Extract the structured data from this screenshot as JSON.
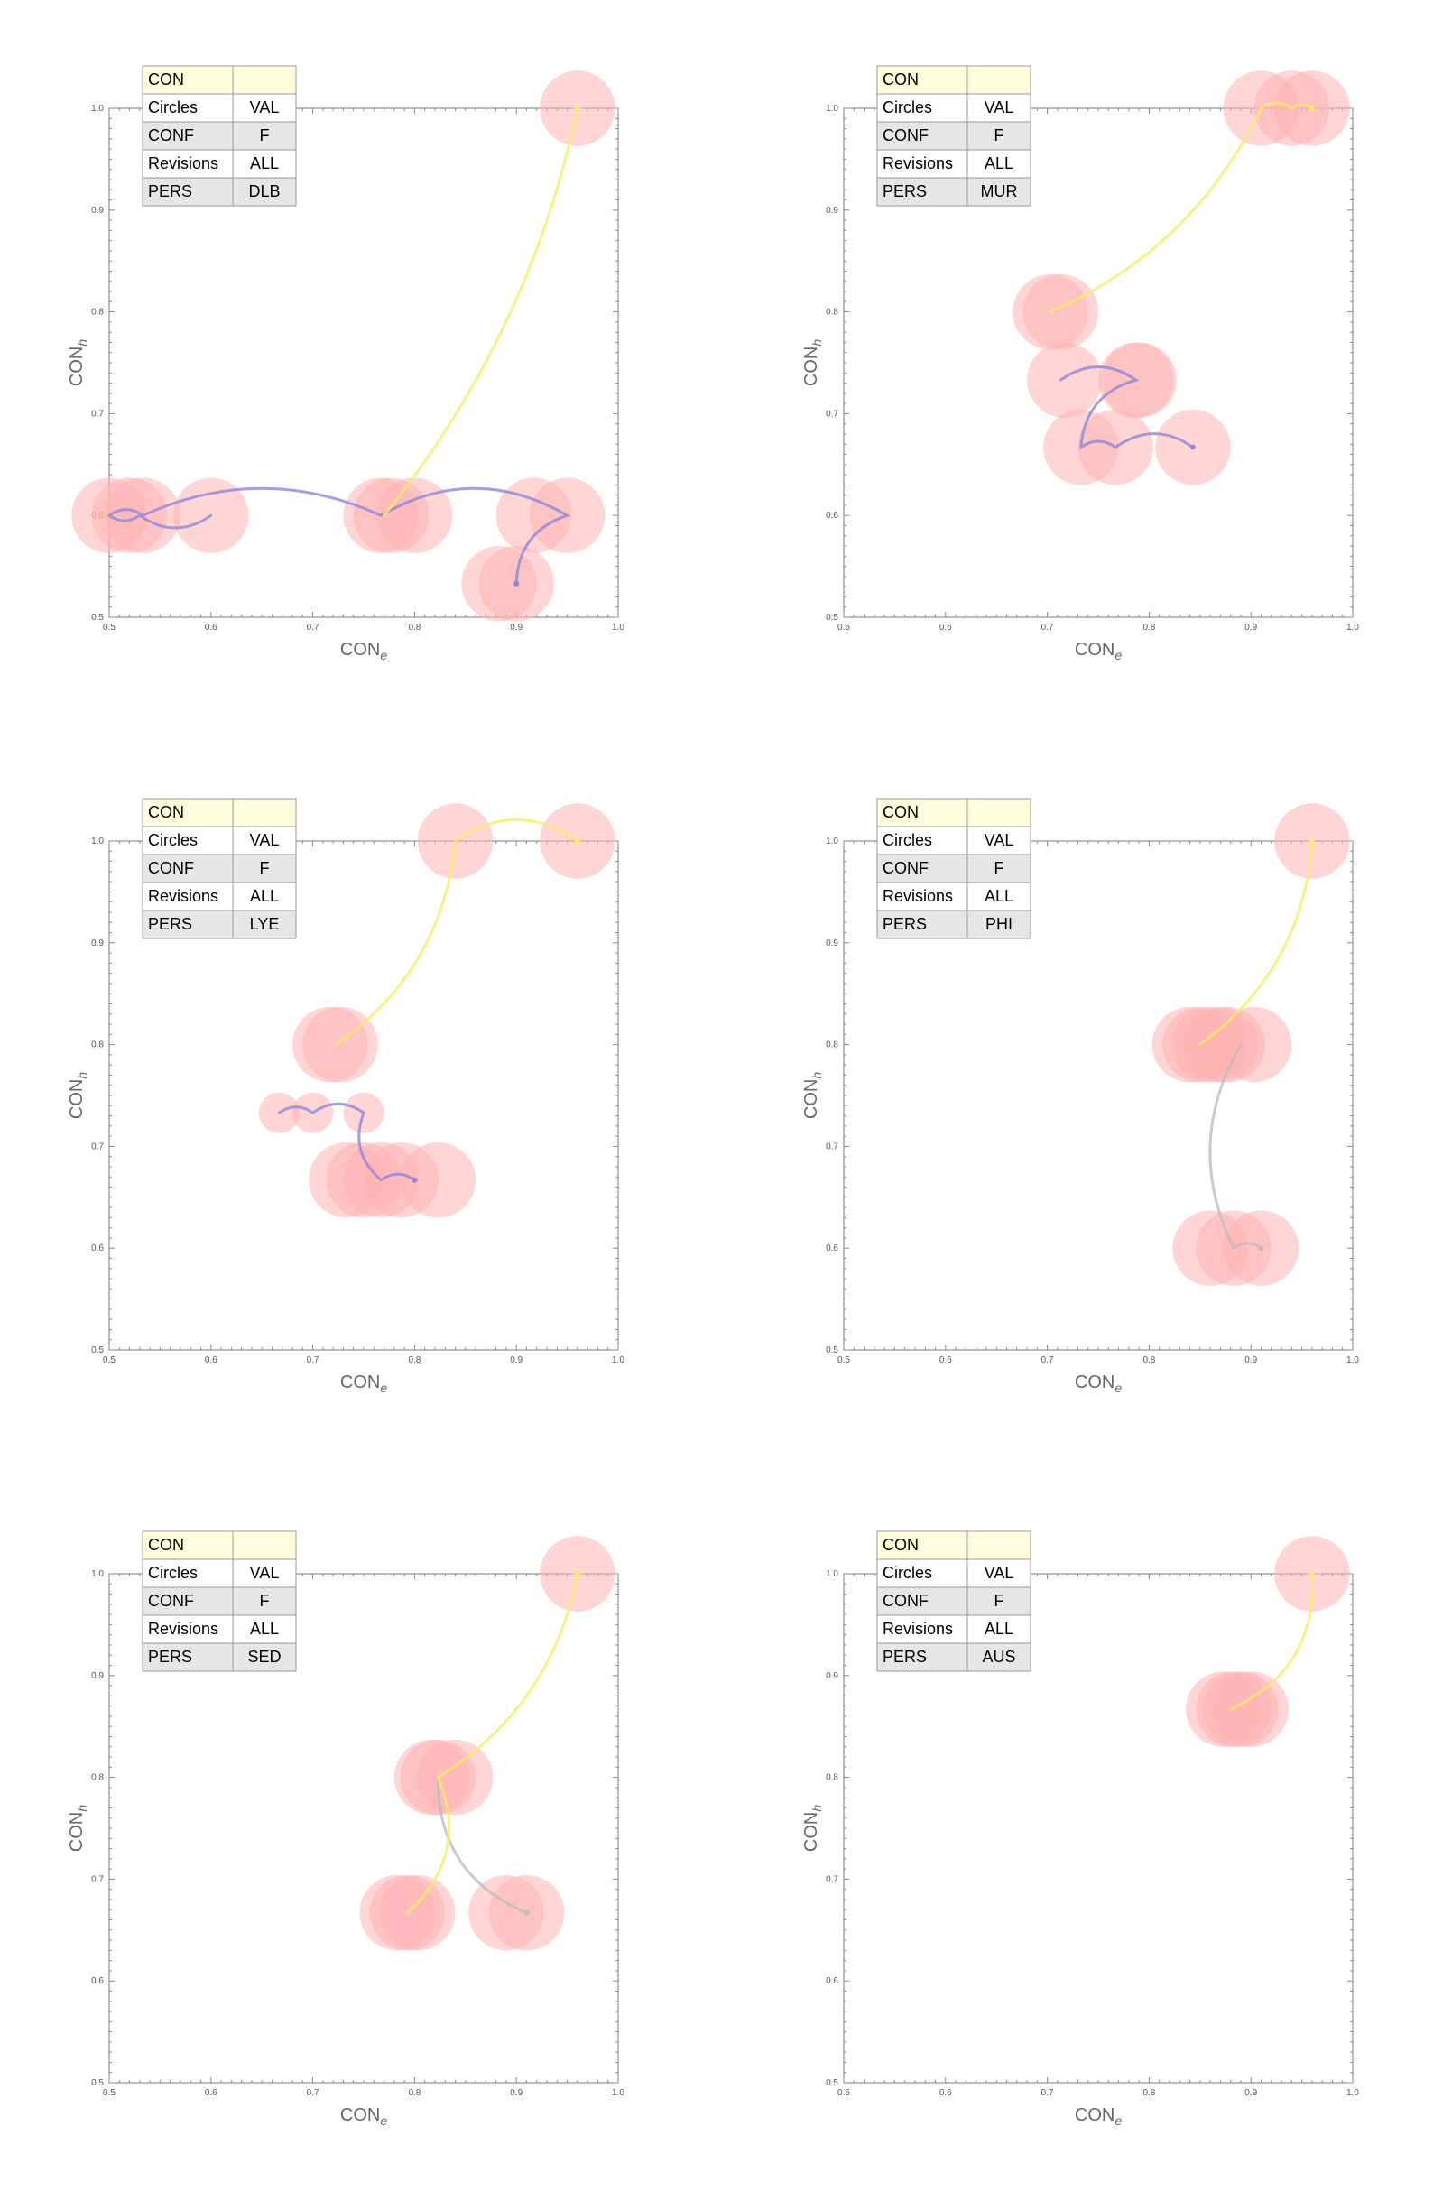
{
  "chart_data": [
    {
      "type": "scatter",
      "xlabel": "CON",
      "xlabel_sub": "e",
      "ylabel": "CON",
      "ylabel_sub": "h",
      "xlim": [
        0.5,
        1.0
      ],
      "ylim": [
        0.5,
        1.0
      ],
      "xticks": [
        "0.5",
        "0.6",
        "0.7",
        "0.8",
        "0.9",
        "1.0"
      ],
      "yticks": [
        "0.5",
        "0.6",
        "0.7",
        "0.8",
        "0.9",
        "1.0"
      ],
      "legend": [
        [
          "CON",
          ""
        ],
        [
          "Circles",
          "VAL"
        ],
        [
          "CONF",
          "F"
        ],
        [
          "Revisions",
          "ALL"
        ],
        [
          "PERS",
          "DLB"
        ]
      ],
      "points": [
        {
          "x": 0.5,
          "y": 0.6,
          "r": 0.037
        },
        {
          "x": 0.52,
          "y": 0.6,
          "r": 0.037
        },
        {
          "x": 0.533,
          "y": 0.6,
          "r": 0.037
        },
        {
          "x": 0.6,
          "y": 0.6,
          "r": 0.037
        },
        {
          "x": 0.767,
          "y": 0.6,
          "r": 0.037
        },
        {
          "x": 0.777,
          "y": 0.6,
          "r": 0.037
        },
        {
          "x": 0.8,
          "y": 0.6,
          "r": 0.037
        },
        {
          "x": 0.917,
          "y": 0.6,
          "r": 0.037
        },
        {
          "x": 0.95,
          "y": 0.6,
          "r": 0.037
        },
        {
          "x": 0.883,
          "y": 0.533,
          "r": 0.037
        },
        {
          "x": 0.9,
          "y": 0.533,
          "r": 0.037
        },
        {
          "x": 0.96,
          "y": 1.0,
          "r": 0.037
        }
      ],
      "paths": [
        {
          "color": "#8c87dc",
          "points": [
            [
              0.6,
              0.6
            ],
            [
              0.53,
              0.6
            ],
            [
              0.5,
              0.6
            ],
            [
              0.533,
              0.6
            ],
            [
              0.767,
              0.6
            ],
            [
              0.95,
              0.6
            ],
            [
              0.9,
              0.533
            ]
          ]
        },
        {
          "color": "#f3ef6a",
          "points": [
            [
              0.77,
              0.6
            ],
            [
              0.96,
              1.0
            ]
          ]
        }
      ]
    },
    {
      "type": "scatter",
      "xlabel": "CON",
      "xlabel_sub": "e",
      "ylabel": "CON",
      "ylabel_sub": "h",
      "xlim": [
        0.5,
        1.0
      ],
      "ylim": [
        0.5,
        1.0
      ],
      "xticks": [
        "0.5",
        "0.6",
        "0.7",
        "0.8",
        "0.9",
        "1.0"
      ],
      "yticks": [
        "0.5",
        "0.6",
        "0.7",
        "0.8",
        "0.9",
        "1.0"
      ],
      "legend": [
        [
          "CON",
          ""
        ],
        [
          "Circles",
          "VAL"
        ],
        [
          "CONF",
          "F"
        ],
        [
          "Revisions",
          "ALL"
        ],
        [
          "PERS",
          "MUR"
        ]
      ],
      "points": [
        {
          "x": 0.703,
          "y": 0.8,
          "r": 0.037
        },
        {
          "x": 0.713,
          "y": 0.8,
          "r": 0.037
        },
        {
          "x": 0.717,
          "y": 0.733,
          "r": 0.037
        },
        {
          "x": 0.787,
          "y": 0.733,
          "r": 0.037
        },
        {
          "x": 0.79,
          "y": 0.733,
          "r": 0.037
        },
        {
          "x": 0.733,
          "y": 0.667,
          "r": 0.037
        },
        {
          "x": 0.767,
          "y": 0.667,
          "r": 0.037
        },
        {
          "x": 0.843,
          "y": 0.667,
          "r": 0.037
        },
        {
          "x": 0.91,
          "y": 1.0,
          "r": 0.037
        },
        {
          "x": 0.94,
          "y": 1.0,
          "r": 0.037
        },
        {
          "x": 0.96,
          "y": 1.0,
          "r": 0.037
        }
      ],
      "paths": [
        {
          "color": "#8c87dc",
          "points": [
            [
              0.713,
              0.733
            ],
            [
              0.787,
              0.733
            ],
            [
              0.733,
              0.667
            ],
            [
              0.767,
              0.667
            ],
            [
              0.843,
              0.667
            ]
          ]
        },
        {
          "color": "#f3ef6a",
          "points": [
            [
              0.703,
              0.8
            ],
            [
              0.91,
              1.0
            ],
            [
              0.94,
              1.0
            ],
            [
              0.96,
              1.0
            ]
          ]
        }
      ]
    },
    {
      "type": "scatter",
      "xlabel": "CON",
      "xlabel_sub": "e",
      "ylabel": "CON",
      "ylabel_sub": "h",
      "xlim": [
        0.5,
        1.0
      ],
      "ylim": [
        0.5,
        1.0
      ],
      "xticks": [
        "0.5",
        "0.6",
        "0.7",
        "0.8",
        "0.9",
        "1.0"
      ],
      "yticks": [
        "0.5",
        "0.6",
        "0.7",
        "0.8",
        "0.9",
        "1.0"
      ],
      "legend": [
        [
          "CON",
          ""
        ],
        [
          "Circles",
          "VAL"
        ],
        [
          "CONF",
          "F"
        ],
        [
          "Revisions",
          "ALL"
        ],
        [
          "PERS",
          "LYE"
        ]
      ],
      "points": [
        {
          "x": 0.667,
          "y": 0.733,
          "r": 0.02
        },
        {
          "x": 0.7,
          "y": 0.733,
          "r": 0.02
        },
        {
          "x": 0.75,
          "y": 0.733,
          "r": 0.02
        },
        {
          "x": 0.717,
          "y": 0.8,
          "r": 0.037
        },
        {
          "x": 0.727,
          "y": 0.8,
          "r": 0.037
        },
        {
          "x": 0.733,
          "y": 0.667,
          "r": 0.037
        },
        {
          "x": 0.75,
          "y": 0.667,
          "r": 0.037
        },
        {
          "x": 0.767,
          "y": 0.667,
          "r": 0.037
        },
        {
          "x": 0.787,
          "y": 0.667,
          "r": 0.037
        },
        {
          "x": 0.823,
          "y": 0.667,
          "r": 0.037
        },
        {
          "x": 0.84,
          "y": 1.0,
          "r": 0.037
        },
        {
          "x": 0.96,
          "y": 1.0,
          "r": 0.037
        }
      ],
      "paths": [
        {
          "color": "#8c87dc",
          "points": [
            [
              0.667,
              0.733
            ],
            [
              0.7,
              0.733
            ],
            [
              0.75,
              0.733
            ],
            [
              0.767,
              0.667
            ],
            [
              0.8,
              0.667
            ]
          ]
        },
        {
          "color": "#f3ef6a",
          "points": [
            [
              0.723,
              0.8
            ],
            [
              0.84,
              1.0
            ],
            [
              0.96,
              1.0
            ]
          ]
        }
      ]
    },
    {
      "type": "scatter",
      "xlabel": "CON",
      "xlabel_sub": "e",
      "ylabel": "CON",
      "ylabel_sub": "h",
      "xlim": [
        0.5,
        1.0
      ],
      "ylim": [
        0.5,
        1.0
      ],
      "xticks": [
        "0.5",
        "0.6",
        "0.7",
        "0.8",
        "0.9",
        "1.0"
      ],
      "yticks": [
        "0.5",
        "0.6",
        "0.7",
        "0.8",
        "0.9",
        "1.0"
      ],
      "legend": [
        [
          "CON",
          ""
        ],
        [
          "Circles",
          "VAL"
        ],
        [
          "CONF",
          "F"
        ],
        [
          "Revisions",
          "ALL"
        ],
        [
          "PERS",
          "PHI"
        ]
      ],
      "points": [
        {
          "x": 0.84,
          "y": 0.8,
          "r": 0.037
        },
        {
          "x": 0.85,
          "y": 0.8,
          "r": 0.037
        },
        {
          "x": 0.86,
          "y": 0.8,
          "r": 0.037
        },
        {
          "x": 0.87,
          "y": 0.8,
          "r": 0.037
        },
        {
          "x": 0.877,
          "y": 0.8,
          "r": 0.037
        },
        {
          "x": 0.903,
          "y": 0.8,
          "r": 0.037
        },
        {
          "x": 0.86,
          "y": 0.6,
          "r": 0.037
        },
        {
          "x": 0.883,
          "y": 0.6,
          "r": 0.037
        },
        {
          "x": 0.91,
          "y": 0.6,
          "r": 0.037
        },
        {
          "x": 0.96,
          "y": 1.0,
          "r": 0.037
        }
      ],
      "paths": [
        {
          "color": "#bdbdbd",
          "points": [
            [
              0.89,
              0.8
            ],
            [
              0.883,
              0.6
            ],
            [
              0.91,
              0.6
            ]
          ]
        },
        {
          "color": "#f3ef6a",
          "points": [
            [
              0.85,
              0.8
            ],
            [
              0.96,
              1.0
            ]
          ]
        }
      ]
    },
    {
      "type": "scatter",
      "xlabel": "CON",
      "xlabel_sub": "e",
      "ylabel": "CON",
      "ylabel_sub": "h",
      "xlim": [
        0.5,
        1.0
      ],
      "ylim": [
        0.5,
        1.0
      ],
      "xticks": [
        "0.5",
        "0.6",
        "0.7",
        "0.8",
        "0.9",
        "1.0"
      ],
      "yticks": [
        "0.5",
        "0.6",
        "0.7",
        "0.8",
        "0.9",
        "1.0"
      ],
      "legend": [
        [
          "CON",
          ""
        ],
        [
          "Circles",
          "VAL"
        ],
        [
          "CONF",
          "F"
        ],
        [
          "Revisions",
          "ALL"
        ],
        [
          "PERS",
          "SED"
        ]
      ],
      "points": [
        {
          "x": 0.817,
          "y": 0.8,
          "r": 0.037
        },
        {
          "x": 0.823,
          "y": 0.8,
          "r": 0.037
        },
        {
          "x": 0.84,
          "y": 0.8,
          "r": 0.037
        },
        {
          "x": 0.783,
          "y": 0.667,
          "r": 0.037
        },
        {
          "x": 0.793,
          "y": 0.667,
          "r": 0.037
        },
        {
          "x": 0.803,
          "y": 0.667,
          "r": 0.037
        },
        {
          "x": 0.89,
          "y": 0.667,
          "r": 0.037
        },
        {
          "x": 0.91,
          "y": 0.667,
          "r": 0.037
        },
        {
          "x": 0.96,
          "y": 1.0,
          "r": 0.037
        }
      ],
      "paths": [
        {
          "color": "#bdbdbd",
          "points": [
            [
              0.823,
              0.8
            ],
            [
              0.91,
              0.667
            ]
          ]
        },
        {
          "color": "#f3ef6a",
          "points": [
            [
              0.793,
              0.667
            ],
            [
              0.823,
              0.8
            ],
            [
              0.96,
              1.0
            ]
          ]
        }
      ]
    },
    {
      "type": "scatter",
      "xlabel": "CON",
      "xlabel_sub": "e",
      "ylabel": "CON",
      "ylabel_sub": "h",
      "xlim": [
        0.5,
        1.0
      ],
      "ylim": [
        0.5,
        1.0
      ],
      "xticks": [
        "0.5",
        "0.6",
        "0.7",
        "0.8",
        "0.9",
        "1.0"
      ],
      "yticks": [
        "0.5",
        "0.6",
        "0.7",
        "0.8",
        "0.9",
        "1.0"
      ],
      "legend": [
        [
          "CON",
          ""
        ],
        [
          "Circles",
          "VAL"
        ],
        [
          "CONF",
          "F"
        ],
        [
          "Revisions",
          "ALL"
        ],
        [
          "PERS",
          "AUS"
        ]
      ],
      "points": [
        {
          "x": 0.873,
          "y": 0.867,
          "r": 0.037
        },
        {
          "x": 0.883,
          "y": 0.867,
          "r": 0.037
        },
        {
          "x": 0.89,
          "y": 0.867,
          "r": 0.037
        },
        {
          "x": 0.9,
          "y": 0.867,
          "r": 0.037
        },
        {
          "x": 0.96,
          "y": 1.0,
          "r": 0.037
        }
      ],
      "paths": [
        {
          "color": "#f3ef6a",
          "points": [
            [
              0.88,
              0.867
            ],
            [
              0.96,
              1.0
            ]
          ]
        }
      ]
    }
  ]
}
